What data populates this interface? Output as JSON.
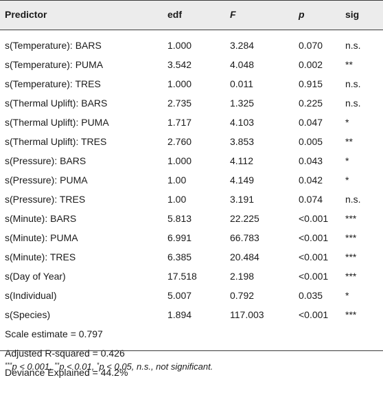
{
  "table": {
    "headers": {
      "predictor": "Predictor",
      "edf": "edf",
      "f": "F",
      "p": "p",
      "sig": "sig"
    },
    "rows": [
      {
        "predictor": "s(Temperature): BARS",
        "edf": "1.000",
        "f": "3.284",
        "p": "0.070",
        "sig": "n.s."
      },
      {
        "predictor": "s(Temperature): PUMA",
        "edf": "3.542",
        "f": "4.048",
        "p": "0.002",
        "sig": "**"
      },
      {
        "predictor": "s(Temperature): TRES",
        "edf": "1.000",
        "f": "0.011",
        "p": "0.915",
        "sig": "n.s."
      },
      {
        "predictor": "s(Thermal Uplift): BARS",
        "edf": "2.735",
        "f": "1.325",
        "p": "0.225",
        "sig": "n.s."
      },
      {
        "predictor": "s(Thermal Uplift): PUMA",
        "edf": "1.717",
        "f": "4.103",
        "p": "0.047",
        "sig": "*"
      },
      {
        "predictor": "s(Thermal Uplift): TRES",
        "edf": "2.760",
        "f": "3.853",
        "p": "0.005",
        "sig": "**"
      },
      {
        "predictor": "s(Pressure): BARS",
        "edf": "1.000",
        "f": "4.112",
        "p": "0.043",
        "sig": "*"
      },
      {
        "predictor": "s(Pressure): PUMA",
        "edf": "1.00",
        "f": "4.149",
        "p": "0.042",
        "sig": "*"
      },
      {
        "predictor": "s(Pressure): TRES",
        "edf": "1.00",
        "f": "3.191",
        "p": "0.074",
        "sig": "n.s."
      },
      {
        "predictor": "s(Minute): BARS",
        "edf": "5.813",
        "f": "22.225",
        "p": "<0.001",
        "sig": "***"
      },
      {
        "predictor": "s(Minute): PUMA",
        "edf": "6.991",
        "f": "66.783",
        "p": "<0.001",
        "sig": "***"
      },
      {
        "predictor": "s(Minute): TRES",
        "edf": "6.385",
        "f": "20.484",
        "p": "<0.001",
        "sig": "***"
      },
      {
        "predictor": "s(Day of Year)",
        "edf": "17.518",
        "f": "2.198",
        "p": "<0.001",
        "sig": "***"
      },
      {
        "predictor": "s(Individual)",
        "edf": "5.007",
        "f": "0.792",
        "p": "0.035",
        "sig": "*"
      },
      {
        "predictor": "s(Species)",
        "edf": "1.894",
        "f": "117.003",
        "p": "<0.001",
        "sig": "***"
      }
    ],
    "stats": [
      "Scale estimate = 0.797",
      "Adjusted R-squared = 0.426",
      "Deviance Explained = 44.2%"
    ]
  },
  "footnote": {
    "sup1": "***",
    "text1": "p < 0.001, ",
    "sup2": "**",
    "text2": "p < 0.01, ",
    "sup3": "*",
    "text3": "p < 0.05, n.s., not significant."
  },
  "colors": {
    "header_background": "#ececec",
    "rule": "#3a3a3a",
    "text": "#1a1a1a"
  }
}
